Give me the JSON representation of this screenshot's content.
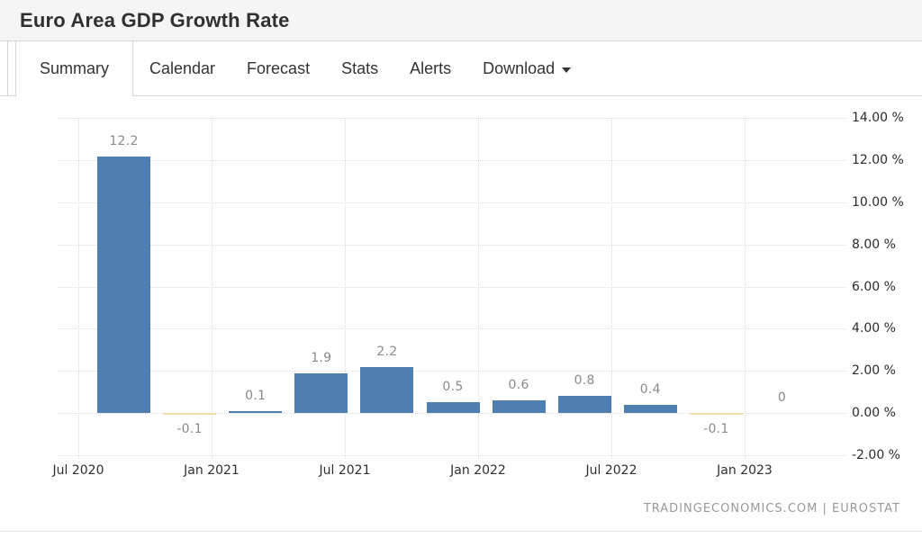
{
  "header": {
    "title": "Euro Area GDP Growth Rate"
  },
  "tabs": {
    "items": [
      {
        "label": "Summary",
        "active": true,
        "has_caret": false
      },
      {
        "label": "Calendar",
        "active": false,
        "has_caret": false
      },
      {
        "label": "Forecast",
        "active": false,
        "has_caret": false
      },
      {
        "label": "Stats",
        "active": false,
        "has_caret": false
      },
      {
        "label": "Alerts",
        "active": false,
        "has_caret": false
      },
      {
        "label": "Download",
        "active": false,
        "has_caret": true
      }
    ]
  },
  "chart_data": {
    "type": "bar",
    "title": "Euro Area GDP Growth Rate",
    "unit": "%",
    "categories": [
      "Jul 2020",
      "Oct 2020",
      "Jan 2021",
      "Apr 2021",
      "Jul 2021",
      "Oct 2021",
      "Jan 2022",
      "Apr 2022",
      "Jul 2022",
      "Oct 2022",
      "Jan 2023"
    ],
    "values": [
      12.2,
      -0.1,
      0.1,
      1.9,
      2.2,
      0.5,
      0.6,
      0.8,
      0.4,
      -0.1,
      0
    ],
    "x_tick_labels": [
      "Jul 2020",
      "Jan 2021",
      "Jul 2021",
      "Jan 2022",
      "Jul 2022",
      "Jan 2023"
    ],
    "y_ticks": [
      {
        "value": 14,
        "label": "14.00 %"
      },
      {
        "value": 12,
        "label": "12.00 %"
      },
      {
        "value": 10,
        "label": "10.00 %"
      },
      {
        "value": 8,
        "label": "8.00 %"
      },
      {
        "value": 6,
        "label": "6.00 %"
      },
      {
        "value": 4,
        "label": "4.00 %"
      },
      {
        "value": 2,
        "label": "2.00 %"
      },
      {
        "value": 0,
        "label": "0.00 %"
      },
      {
        "value": -2,
        "label": "-2.00 %"
      }
    ],
    "ylim": [
      -2.2,
      14.3
    ],
    "xlabel": "",
    "ylabel": "",
    "grid": "dotted",
    "legend": "none",
    "colors": {
      "bar_positive": "#4f7fb0",
      "bar_negative": "#f3dcab",
      "value_label": "#8a8a8a",
      "axis_label": "#2f2f2f",
      "gridline": "#dcdcdc"
    }
  },
  "chart_footer": {
    "attribution": "TRADINGECONOMICS.COM | EUROSTAT"
  }
}
